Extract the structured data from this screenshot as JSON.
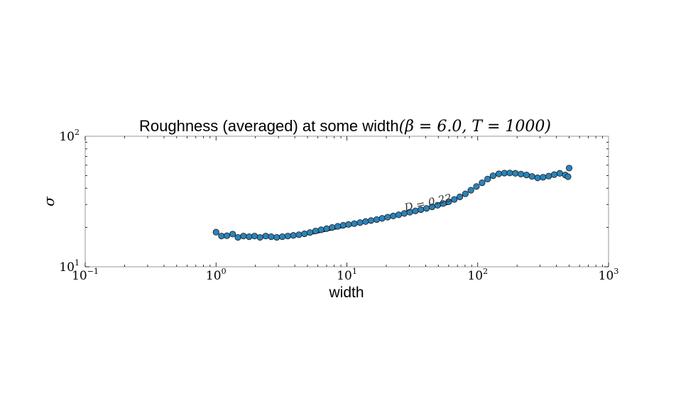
{
  "chart_data": {
    "type": "scatter",
    "title_text": "Roughness (averaged) at some width",
    "title_math": "(β = 6.0, T = 1000)",
    "xlabel": "width",
    "ylabel": "σ",
    "xscale": "log",
    "yscale": "log",
    "xlim": [
      0.1,
      1000
    ],
    "ylim": [
      10,
      100
    ],
    "x_ticks": [
      {
        "value": 0.1,
        "base": "10",
        "exp": "−1"
      },
      {
        "value": 1,
        "base": "10",
        "exp": "0"
      },
      {
        "value": 10,
        "base": "10",
        "exp": "1"
      },
      {
        "value": 100,
        "base": "10",
        "exp": "2"
      },
      {
        "value": 1000,
        "base": "10",
        "exp": "3"
      }
    ],
    "y_ticks": [
      {
        "value": 10,
        "base": "10",
        "exp": "1"
      },
      {
        "value": 100,
        "base": "10",
        "exp": "2"
      }
    ],
    "grid": false,
    "series": [
      {
        "color": "#2b83ba",
        "points": [
          [
            1.0,
            18.4
          ],
          [
            1.1,
            17.2
          ],
          [
            1.21,
            17.3
          ],
          [
            1.34,
            17.8
          ],
          [
            1.47,
            16.8
          ],
          [
            1.62,
            17.2
          ],
          [
            1.79,
            17.0
          ],
          [
            1.97,
            17.2
          ],
          [
            2.17,
            16.8
          ],
          [
            2.4,
            17.2
          ],
          [
            2.64,
            17.0
          ],
          [
            2.91,
            16.8
          ],
          [
            3.21,
            17.0
          ],
          [
            3.54,
            17.2
          ],
          [
            3.9,
            17.4
          ],
          [
            4.3,
            17.6
          ],
          [
            4.74,
            17.9
          ],
          [
            5.22,
            18.3
          ],
          [
            5.76,
            18.8
          ],
          [
            6.35,
            19.2
          ],
          [
            7.0,
            19.6
          ],
          [
            7.72,
            20.0
          ],
          [
            8.51,
            20.4
          ],
          [
            9.38,
            20.8
          ],
          [
            10.3,
            21.1
          ],
          [
            11.4,
            21.4
          ],
          [
            12.6,
            21.8
          ],
          [
            13.9,
            22.2
          ],
          [
            15.3,
            22.6
          ],
          [
            16.9,
            23.0
          ],
          [
            18.6,
            23.5
          ],
          [
            20.5,
            24.0
          ],
          [
            22.6,
            24.5
          ],
          [
            24.9,
            25.0
          ],
          [
            27.5,
            25.6
          ],
          [
            30.3,
            26.2
          ],
          [
            33.4,
            26.8
          ],
          [
            36.8,
            27.4
          ],
          [
            40.6,
            28.0
          ],
          [
            44.8,
            28.8
          ],
          [
            49.4,
            29.6
          ],
          [
            54.4,
            30.5
          ],
          [
            60.0,
            31.5
          ],
          [
            66.2,
            32.8
          ],
          [
            73.0,
            34.3
          ],
          [
            80.5,
            36.2
          ],
          [
            88.7,
            38.6
          ],
          [
            97.8,
            41.2
          ],
          [
            108,
            44.0
          ],
          [
            119,
            47.0
          ],
          [
            131,
            49.8
          ],
          [
            145,
            51.5
          ],
          [
            160,
            52.2
          ],
          [
            176,
            52.3
          ],
          [
            194,
            52.0
          ],
          [
            214,
            51.3
          ],
          [
            236,
            50.5
          ],
          [
            260,
            49.2
          ],
          [
            287,
            48.0
          ],
          [
            316,
            48.5
          ],
          [
            349,
            49.5
          ],
          [
            384,
            50.8
          ],
          [
            424,
            52.0
          ],
          [
            467,
            50.5
          ],
          [
            490,
            49.0
          ],
          [
            500,
            57.0
          ]
        ]
      }
    ],
    "fit": {
      "x_range": [
        5.5,
        60
      ],
      "anchor": [
        10,
        20.3
      ],
      "slope": 0.22,
      "label": "D = 0.22",
      "label_at": [
        28,
        26.6
      ]
    }
  }
}
